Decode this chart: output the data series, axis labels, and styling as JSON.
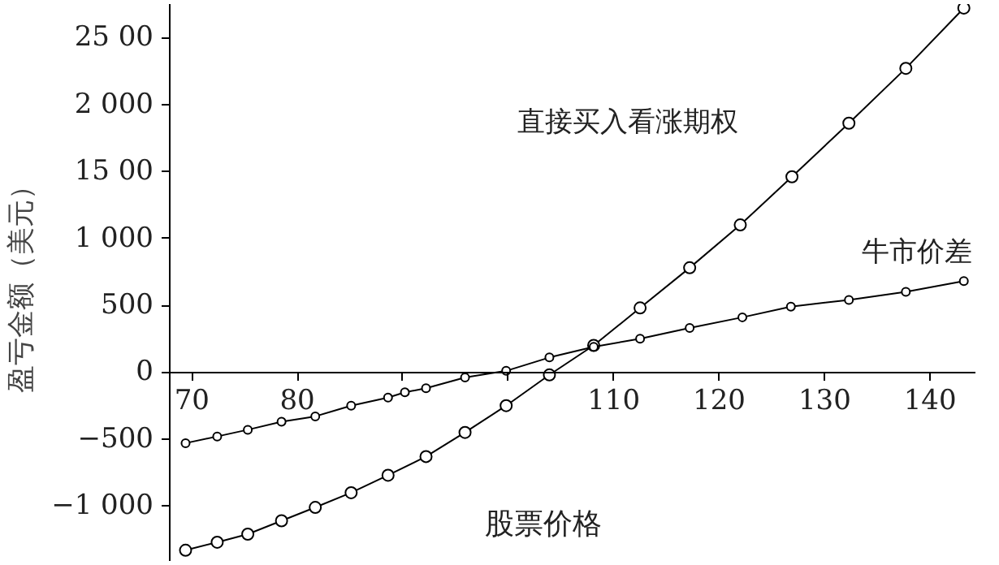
{
  "chart_data": {
    "type": "line",
    "xlabel": "股票价格",
    "ylabel": "盈亏金额（美元）",
    "series": [
      {
        "name": "直接买入看涨期权",
        "color": "#000000",
        "x": [
          69.4,
          72.4,
          75.3,
          78.5,
          81.7,
          85.1,
          88.6,
          92.2,
          95.9,
          99.8,
          103.9,
          108.1,
          112.5,
          117.2,
          122.0,
          126.9,
          132.3,
          137.7,
          143.2
        ],
        "values": [
          -1330,
          -1270,
          -1210,
          -1110,
          -1010,
          -900,
          -770,
          -630,
          -450,
          -250,
          -20,
          200,
          480,
          780,
          1100,
          1460,
          1860,
          2270,
          2720
        ]
      },
      {
        "name": "牛市价差",
        "color": "#000000",
        "x": [
          69.4,
          72.4,
          75.3,
          78.5,
          81.7,
          85.1,
          88.6,
          90.2,
          92.2,
          95.9,
          99.8,
          103.9,
          108.1,
          112.5,
          117.2,
          122.2,
          126.8,
          132.3,
          137.7,
          143.2
        ],
        "values": [
          -530,
          -480,
          -430,
          -370,
          -330,
          -250,
          -190,
          -150,
          -120,
          -40,
          10,
          110,
          190,
          250,
          330,
          410,
          490,
          540,
          600,
          680
        ]
      }
    ],
    "xlim": [
      67.9,
      144.3
    ],
    "ylim": [
      -1410,
      2750
    ],
    "xticks": [
      70,
      80,
      {
        "value": 90,
        "label": null
      },
      {
        "value": 100,
        "label": null
      },
      110,
      120,
      130,
      140
    ],
    "yticks": [
      {
        "value": -1000,
        "label": "−1 000"
      },
      {
        "value": -500,
        "label": "−500"
      },
      0,
      500,
      {
        "value": 1000,
        "label": "1 000"
      },
      {
        "value": 1500,
        "label": "15 00"
      },
      {
        "value": 2000,
        "label": "2 000"
      },
      {
        "value": 2500,
        "label": "25 00"
      }
    ],
    "grid": false,
    "legend": false,
    "marker": "circle",
    "line_style": "solid"
  }
}
